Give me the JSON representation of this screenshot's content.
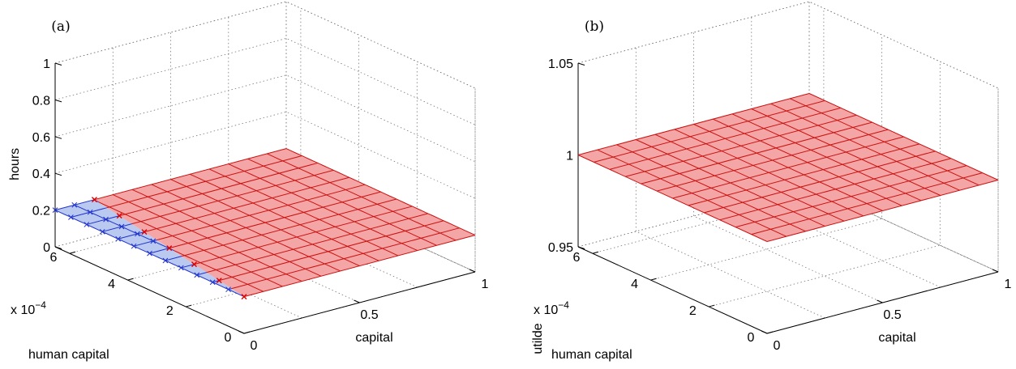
{
  "chart_data": [
    {
      "type": "surface",
      "panel_label": "(a)",
      "xlabel": "capital",
      "ylabel": "human capital",
      "zlabel": "hours",
      "y_exponent_label": "x 10",
      "y_exponent": "−4",
      "x_ticks": [
        "0",
        "0.5",
        "1"
      ],
      "y_ticks": [
        "0",
        "2",
        "4",
        "6"
      ],
      "z_ticks": [
        "0",
        "0.2",
        "0.4",
        "0.6",
        "0.8",
        "1"
      ],
      "xlim": [
        0,
        1
      ],
      "ylim": [
        0,
        6.5
      ],
      "zlim": [
        0,
        1
      ],
      "grid": true,
      "surface": {
        "mesh": [
          13,
          13
        ],
        "base_value": 0.2,
        "regions": [
          {
            "name": "left",
            "fill": "#b9c9f0",
            "edge": "#2233cc",
            "marker": "x"
          },
          {
            "name": "right",
            "fill": "#f4a6a6",
            "edge": "#cc1111",
            "marker": "none"
          }
        ],
        "boundary_marker_color": "#dd0000"
      }
    },
    {
      "type": "surface",
      "panel_label": "(b)",
      "xlabel": "capital",
      "ylabel": "human capital",
      "zlabel": "utilde",
      "y_exponent_label": "x 10",
      "y_exponent": "−4",
      "x_ticks": [
        "0",
        "0.5",
        "1"
      ],
      "y_ticks": [
        "0",
        "2",
        "4",
        "6"
      ],
      "z_ticks": [
        "0.95",
        "1",
        "1.05"
      ],
      "xlim": [
        0,
        1
      ],
      "ylim": [
        0,
        6.5
      ],
      "zlim": [
        0.95,
        1.05
      ],
      "grid": true,
      "surface": {
        "mesh": [
          13,
          13
        ],
        "base_value": 1.0,
        "regions": [
          {
            "name": "all",
            "fill": "#f4a6a6",
            "edge": "#cc1111",
            "marker": "none"
          }
        ]
      }
    }
  ]
}
